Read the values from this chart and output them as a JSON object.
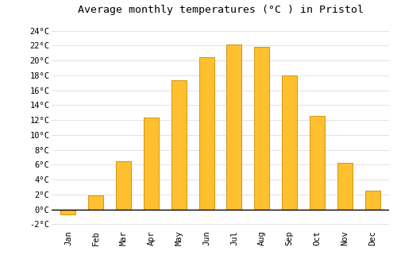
{
  "months": [
    "Jan",
    "Feb",
    "Mar",
    "Apr",
    "May",
    "Jun",
    "Jul",
    "Aug",
    "Sep",
    "Oct",
    "Nov",
    "Dec"
  ],
  "temperatures": [
    -0.7,
    1.9,
    6.5,
    12.3,
    17.3,
    20.4,
    22.1,
    21.8,
    18.0,
    12.5,
    6.3,
    2.5
  ],
  "bar_color": "#FFC030",
  "bar_edge_color": "#CC8800",
  "title": "Average monthly temperatures (°C ) in Pristol",
  "ylabel_ticks": [
    "-2°C",
    "0°C",
    "2°C",
    "4°C",
    "6°C",
    "8°C",
    "10°C",
    "12°C",
    "14°C",
    "16°C",
    "18°C",
    "20°C",
    "22°C",
    "24°C"
  ],
  "ytick_values": [
    -2,
    0,
    2,
    4,
    6,
    8,
    10,
    12,
    14,
    16,
    18,
    20,
    22,
    24
  ],
  "ylim": [
    -2.5,
    25.5
  ],
  "background_color": "#FFFFFF",
  "grid_color": "#DDDDDD",
  "title_fontsize": 9.5,
  "tick_fontsize": 7.5,
  "zero_line_color": "#000000",
  "bar_width": 0.55
}
